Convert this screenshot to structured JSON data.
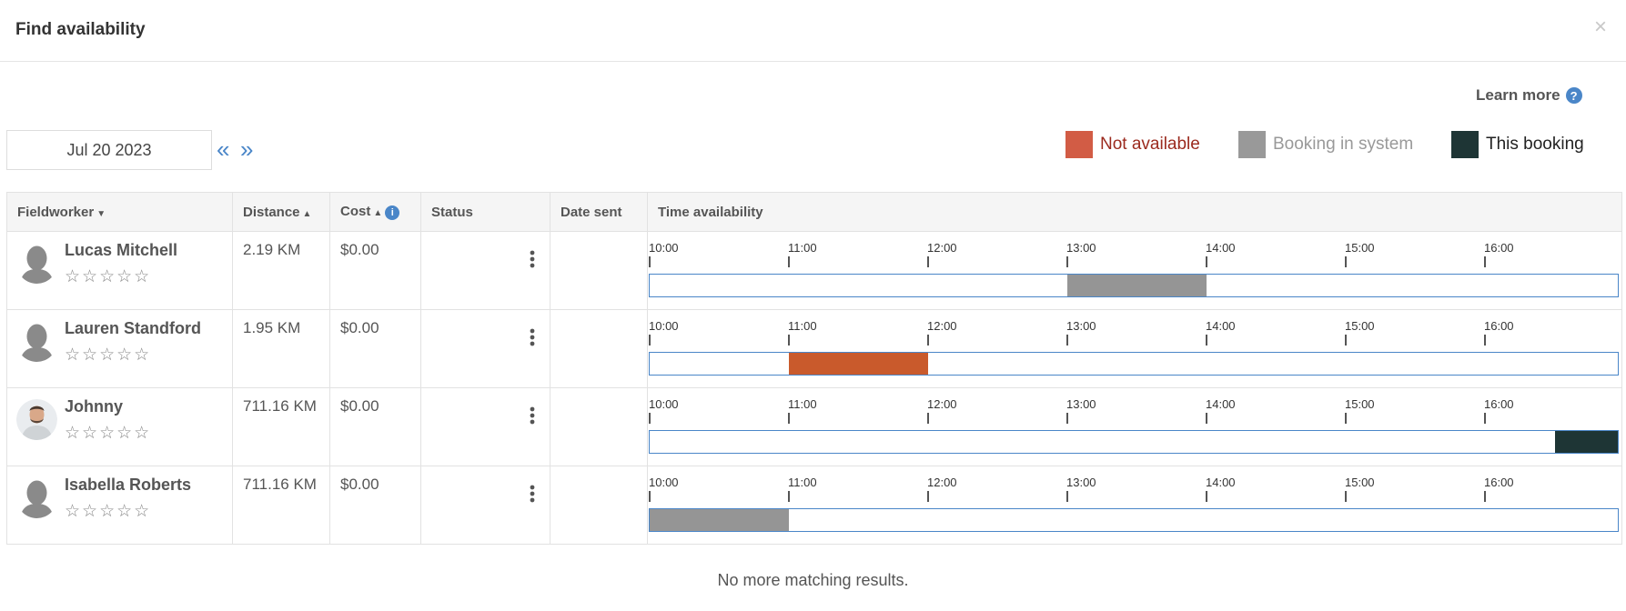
{
  "modal": {
    "title": "Find availability",
    "close_label": "×"
  },
  "learn_more": {
    "label": "Learn more",
    "icon": "question-circle-icon",
    "icon_glyph": "?"
  },
  "date": {
    "value": "Jul 20 2023",
    "prev_glyph": "«",
    "next_glyph": "»"
  },
  "legend": [
    {
      "label": "Not available",
      "color": "#d25c45",
      "text_color": "#9b2a1e"
    },
    {
      "label": "Booking in system",
      "color": "#999999",
      "text_color": "#999999"
    },
    {
      "label": "This booking",
      "color": "#1e3535",
      "text_color": "#222222"
    }
  ],
  "columns": {
    "fieldworker": "Fieldworker",
    "distance": "Distance",
    "cost": "Cost",
    "status": "Status",
    "date_sent": "Date sent",
    "time_availability": "Time availability"
  },
  "info_glyph": "i",
  "time_ticks": [
    "10:00",
    "11:00",
    "12:00",
    "13:00",
    "14:00",
    "15:00",
    "16:00"
  ],
  "rows": [
    {
      "name": "Lucas Mitchell",
      "stars": "☆☆☆☆☆",
      "distance": "2.19 KM",
      "cost": "$0.00",
      "status": "",
      "date_sent": "",
      "avatar": "silhouette",
      "segments": [
        {
          "kind": "booking",
          "start": 13.0,
          "end": 14.0
        }
      ]
    },
    {
      "name": "Lauren Standford",
      "stars": "☆☆☆☆☆",
      "distance": "1.95 KM",
      "cost": "$0.00",
      "status": "",
      "date_sent": "",
      "avatar": "silhouette",
      "segments": [
        {
          "kind": "unavailable",
          "start": 11.0,
          "end": 12.0
        }
      ]
    },
    {
      "name": "Johnny",
      "stars": "☆☆☆☆☆",
      "distance": "711.16 KM",
      "cost": "$0.00",
      "status": "",
      "date_sent": "",
      "avatar": "photo",
      "segments": [
        {
          "kind": "this",
          "start": 16.5,
          "end": 17.0
        }
      ]
    },
    {
      "name": "Isabella Roberts",
      "stars": "☆☆☆☆☆",
      "distance": "711.16 KM",
      "cost": "$0.00",
      "status": "",
      "date_sent": "",
      "avatar": "silhouette",
      "segments": [
        {
          "kind": "booking",
          "start": 10.0,
          "end": 11.0
        }
      ]
    }
  ],
  "colors": {
    "unavailable": "#c95a2c",
    "booking": "#959595",
    "this": "#1e3535",
    "accent": "#4a86c8"
  },
  "footer": {
    "no_more": "No more matching results."
  }
}
